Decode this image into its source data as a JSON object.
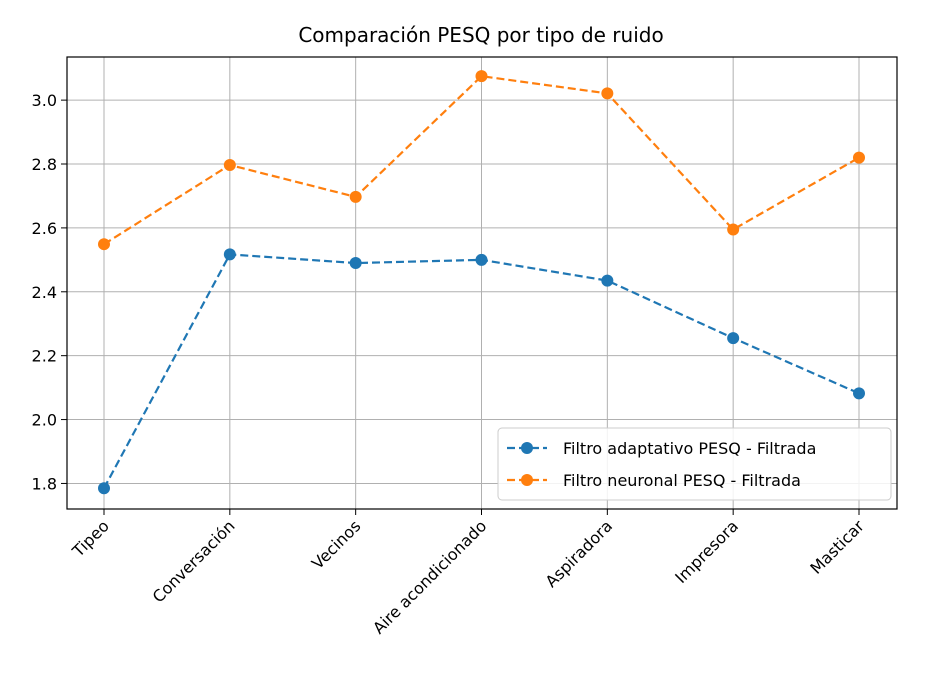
{
  "chart_data": {
    "type": "line",
    "title": "Comparación PESQ por tipo de ruido",
    "xlabel": "",
    "ylabel": "",
    "categories": [
      "Tipeo",
      "Conversación",
      "Vecinos",
      "Aire acondicionado",
      "Aspiradora",
      "Impresora",
      "Masticar"
    ],
    "series": [
      {
        "name": "Filtro adaptativo PESQ - Filtrada",
        "color": "#1f77b4",
        "values": [
          1.785,
          2.517,
          2.49,
          2.5,
          2.435,
          2.255,
          2.082
        ]
      },
      {
        "name": "Filtro neuronal PESQ - Filtrada",
        "color": "#ff7f0e",
        "values": [
          2.549,
          2.797,
          2.697,
          3.075,
          3.021,
          2.595,
          2.82
        ]
      }
    ],
    "ylim": [
      1.72,
      3.135
    ],
    "yticks": [
      "1.8",
      "2.0",
      "2.2",
      "2.4",
      "2.6",
      "2.8",
      "3.0"
    ],
    "grid": true,
    "legend_position": "lower-right"
  }
}
